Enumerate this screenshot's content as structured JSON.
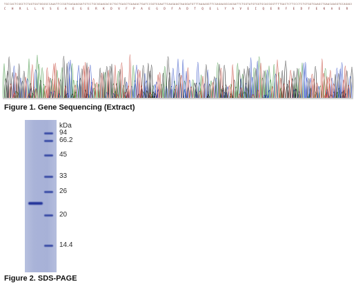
{
  "figure1": {
    "caption": "Figure 1. Gene Sequencing (Extract)",
    "nucleotide_sequence": "TGCCACTCGGCTCTAGTGATGGGGCCAAATTCCGGTGAGAAGGATGTCCTGCGGAAGACGCTGCTGAGCTGAAAACTGATCCGGTGGAATTCAAGAAGTAAGGATGTTTAAAAGGTTCGAGAAGGCAGGATTCTGGTATGTGGTGCACGGGTTTTGACTCTTCCCTCTGTGGTGAAGCTGAACAAGGTGCAGAGCATGCTG",
    "amino_acid_sequence": "C H R L L V S E A E G E R K D V F P A E G D F A D T Q E L Y A V E I Q E R F E D F E K A E R S Q Y V T F E E G L C S V S L T M A E Q L L"
  },
  "figure2": {
    "caption": "Figure 2. SDS-PAGE",
    "unit_label": "kDa",
    "markers": [
      "94",
      "66.2",
      "45",
      "33",
      "26",
      "20",
      "14.4"
    ]
  }
}
